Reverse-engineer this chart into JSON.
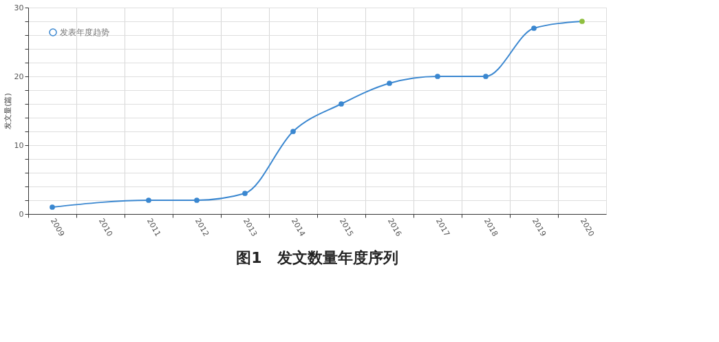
{
  "chart_data": {
    "type": "line",
    "title": "图1　发文数量年度序列",
    "ylabel": "发文量(篇)",
    "categories": [
      "2009",
      "2010",
      "2011",
      "2012",
      "2013",
      "2014",
      "2015",
      "2016",
      "2017",
      "2018",
      "2019",
      "2020"
    ],
    "series": [
      {
        "name": "发表年度趋势",
        "color": "#3a87d0",
        "values": [
          1,
          null,
          2,
          2,
          3,
          12,
          16,
          19,
          20,
          20,
          27,
          28
        ],
        "colors": [
          "#3a87d0",
          "#3a87d0",
          "#3a87d0",
          "#3a87d0",
          "#3a87d0",
          "#3a87d0",
          "#3a87d0",
          "#3a87d0",
          "#3a87d0",
          "#3a87d0",
          "#3a87d0",
          "#8fbf3f"
        ]
      }
    ],
    "ylim": [
      0,
      30
    ],
    "yticks": [
      0,
      {
        "value": 2,
        "label": null
      },
      {
        "value": 4,
        "label": null
      },
      {
        "value": 6,
        "label": null
      },
      {
        "value": 8,
        "label": null
      },
      10,
      {
        "value": 12,
        "label": null
      },
      {
        "value": 14,
        "label": null
      },
      {
        "value": 16,
        "label": null
      },
      {
        "value": 18,
        "label": null
      },
      20,
      {
        "value": 22,
        "label": null
      },
      {
        "value": 24,
        "label": null
      },
      {
        "value": 26,
        "label": null
      },
      {
        "value": 28,
        "label": null
      },
      30
    ],
    "grid": true,
    "legend": "top left",
    "marker": "circle",
    "line_style": "solid"
  }
}
